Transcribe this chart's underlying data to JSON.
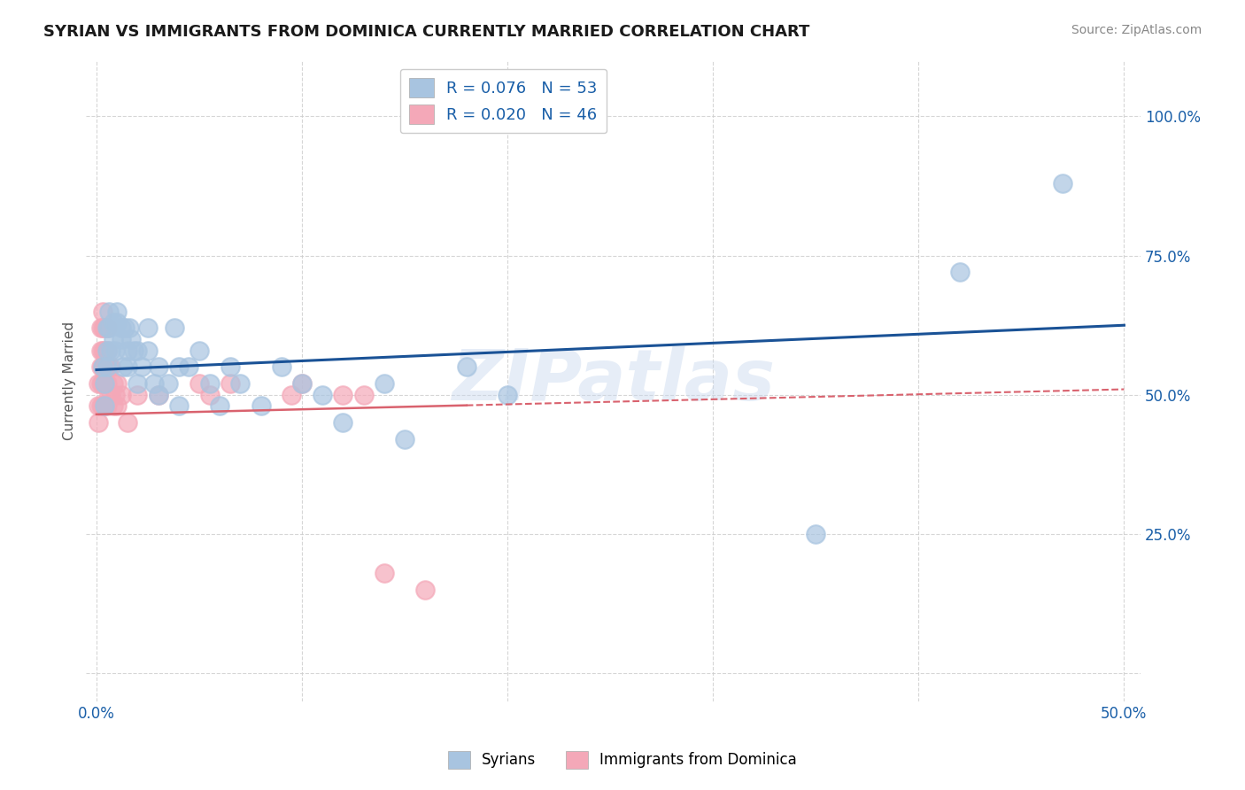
{
  "title": "SYRIAN VS IMMIGRANTS FROM DOMINICA CURRENTLY MARRIED CORRELATION CHART",
  "source": "Source: ZipAtlas.com",
  "ylabel": "Currently Married",
  "yticks": [
    0.0,
    0.25,
    0.5,
    0.75,
    1.0
  ],
  "ytick_labels": [
    "",
    "25.0%",
    "50.0%",
    "75.0%",
    "100.0%"
  ],
  "xticks": [
    0.0,
    0.1,
    0.2,
    0.3,
    0.4,
    0.5
  ],
  "xtick_labels": [
    "0.0%",
    "",
    "",
    "",
    "",
    "50.0%"
  ],
  "R_syrian": 0.076,
  "N_syrian": 53,
  "R_dominica": 0.02,
  "N_dominica": 46,
  "syrian_color": "#a8c4e0",
  "dominica_color": "#f4a8b8",
  "line_syrian_color": "#1a5296",
  "line_dominica_color": "#d9626e",
  "bg_color": "#ffffff",
  "grid_color": "#cccccc",
  "watermark": "ZIPatlas",
  "syrian_line_x0": 0.0,
  "syrian_line_y0": 0.545,
  "syrian_line_x1": 0.5,
  "syrian_line_y1": 0.625,
  "dominica_line_x0": 0.0,
  "dominica_line_y0": 0.465,
  "dominica_line_solid_x1": 0.18,
  "dominica_line_y_solid_end": 0.475,
  "dominica_line_x1": 0.5,
  "dominica_line_y1": 0.51,
  "syrian_x": [
    0.003,
    0.004,
    0.004,
    0.005,
    0.005,
    0.005,
    0.006,
    0.006,
    0.007,
    0.008,
    0.008,
    0.009,
    0.01,
    0.01,
    0.012,
    0.012,
    0.013,
    0.014,
    0.015,
    0.015,
    0.016,
    0.017,
    0.018,
    0.02,
    0.02,
    0.022,
    0.025,
    0.025,
    0.028,
    0.03,
    0.03,
    0.035,
    0.038,
    0.04,
    0.04,
    0.045,
    0.05,
    0.055,
    0.06,
    0.065,
    0.07,
    0.08,
    0.09,
    0.1,
    0.11,
    0.12,
    0.14,
    0.15,
    0.18,
    0.2,
    0.35,
    0.42,
    0.47
  ],
  "syrian_y": [
    0.55,
    0.52,
    0.48,
    0.62,
    0.58,
    0.55,
    0.65,
    0.62,
    0.58,
    0.63,
    0.6,
    0.58,
    0.65,
    0.63,
    0.62,
    0.6,
    0.55,
    0.62,
    0.58,
    0.55,
    0.62,
    0.6,
    0.58,
    0.58,
    0.52,
    0.55,
    0.62,
    0.58,
    0.52,
    0.55,
    0.5,
    0.52,
    0.62,
    0.55,
    0.48,
    0.55,
    0.58,
    0.52,
    0.48,
    0.55,
    0.52,
    0.48,
    0.55,
    0.52,
    0.5,
    0.45,
    0.52,
    0.42,
    0.55,
    0.5,
    0.25,
    0.72,
    0.88
  ],
  "dominica_x": [
    0.001,
    0.001,
    0.001,
    0.002,
    0.002,
    0.002,
    0.002,
    0.002,
    0.003,
    0.003,
    0.003,
    0.003,
    0.003,
    0.003,
    0.004,
    0.004,
    0.004,
    0.004,
    0.004,
    0.005,
    0.005,
    0.005,
    0.005,
    0.005,
    0.006,
    0.006,
    0.007,
    0.007,
    0.008,
    0.008,
    0.009,
    0.01,
    0.01,
    0.012,
    0.015,
    0.02,
    0.03,
    0.05,
    0.055,
    0.065,
    0.095,
    0.1,
    0.12,
    0.13,
    0.14,
    0.16
  ],
  "dominica_y": [
    0.52,
    0.48,
    0.45,
    0.62,
    0.58,
    0.55,
    0.52,
    0.48,
    0.65,
    0.62,
    0.58,
    0.55,
    0.52,
    0.48,
    0.62,
    0.58,
    0.55,
    0.52,
    0.48,
    0.62,
    0.58,
    0.55,
    0.52,
    0.48,
    0.55,
    0.5,
    0.55,
    0.5,
    0.52,
    0.48,
    0.5,
    0.52,
    0.48,
    0.5,
    0.45,
    0.5,
    0.5,
    0.52,
    0.5,
    0.52,
    0.5,
    0.52,
    0.5,
    0.5,
    0.18,
    0.15
  ]
}
